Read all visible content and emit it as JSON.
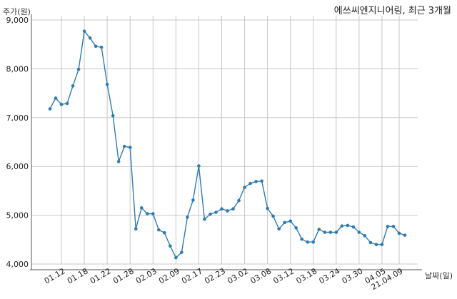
{
  "chart_data": {
    "type": "line",
    "title": "에쓰씨엔지니어링, 최근 3개월",
    "ylabel": "주가(원)",
    "xlabel": "날짜(일)",
    "ylim": [
      4000,
      9000
    ],
    "yticks": [
      4000,
      5000,
      6000,
      7000,
      8000,
      9000
    ],
    "ytick_labels": [
      "4,000",
      "5,000",
      "6,000",
      "7,000",
      "8,000",
      "9,000"
    ],
    "xtick_labels": [
      "01.12",
      "01.18",
      "01.22",
      "01.28",
      "02.03",
      "02.09",
      "02.17",
      "02.23",
      "03.02",
      "03.08",
      "03.12",
      "03.18",
      "03.24",
      "03.30",
      "04.05",
      "21.04.09"
    ],
    "xtick_indices": [
      2,
      6,
      10,
      14,
      18,
      22,
      26,
      30,
      34,
      38,
      42,
      46,
      50,
      54,
      58,
      61
    ],
    "grid": true,
    "line_color": "#2e7bb4",
    "series": [
      {
        "values": [
          7180,
          7400,
          7270,
          7290,
          7650,
          7990,
          8770,
          8630,
          8460,
          8440,
          7680,
          7040,
          6100,
          6410,
          6390,
          4720,
          5150,
          5030,
          5030,
          4700,
          4640,
          4370,
          4130,
          4240,
          4960,
          5310,
          6010,
          4920,
          5020,
          5060,
          5130,
          5090,
          5130,
          5300,
          5570,
          5650,
          5690,
          5700,
          5140,
          4980,
          4720,
          4850,
          4880,
          4740,
          4510,
          4450,
          4450,
          4710,
          4650,
          4650,
          4650,
          4780,
          4790,
          4760,
          4650,
          4580,
          4440,
          4400,
          4400,
          4770,
          4770,
          4630,
          4590
        ]
      }
    ]
  }
}
